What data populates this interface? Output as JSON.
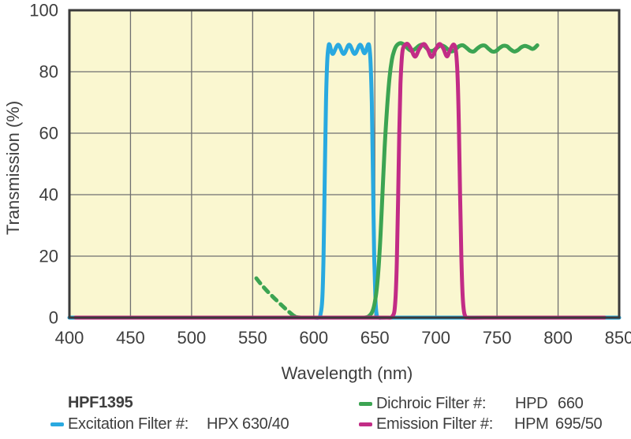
{
  "title_block": {
    "model": "HPF1395"
  },
  "legend": {
    "items": [
      {
        "name": "excitation",
        "label": "Excitation Filter #:",
        "part": "HPX",
        "value": "630/40",
        "color": "#29a9e0"
      },
      {
        "name": "dichroic",
        "label": "Dichroic Filter #:",
        "part": "HPD",
        "value": "660",
        "color": "#3ca452"
      },
      {
        "name": "emission",
        "label": "Emission Filter #:",
        "part": "HPM",
        "value": "695/50",
        "color": "#c22c86"
      }
    ]
  },
  "chart_data": {
    "type": "line",
    "title": "",
    "xlabel": "Wavelength (nm)",
    "ylabel": "Transmission (%)",
    "xlim": [
      400,
      850
    ],
    "ylim": [
      0,
      100
    ],
    "x_ticks": [
      400,
      450,
      500,
      550,
      600,
      650,
      700,
      750,
      800,
      850
    ],
    "y_ticks": [
      0,
      20,
      40,
      60,
      80,
      100
    ],
    "grid": true,
    "legend_position": "bottom",
    "plot_bg": "#faf7d0",
    "grid_color": "#6f6f6f",
    "frame_color": "#3a3a3a",
    "series": [
      {
        "name": "Excitation Filter HPX 630/40",
        "color": "#29a9e0",
        "style": "solid",
        "points": [
          [
            400,
            0
          ],
          [
            450,
            0
          ],
          [
            500,
            0
          ],
          [
            550,
            0
          ],
          [
            580,
            0
          ],
          [
            600,
            0
          ],
          [
            604,
            0
          ],
          [
            605.5,
            1
          ],
          [
            607,
            6
          ],
          [
            608,
            20
          ],
          [
            609,
            45
          ],
          [
            610,
            70
          ],
          [
            611,
            83
          ],
          [
            612,
            88
          ],
          [
            613,
            88.8
          ],
          [
            615.5,
            85.8
          ],
          [
            620,
            88.8
          ],
          [
            624.5,
            85.8
          ],
          [
            629,
            88.8
          ],
          [
            633.5,
            85.8
          ],
          [
            638,
            88.8
          ],
          [
            641.5,
            86
          ],
          [
            644.5,
            88.8
          ],
          [
            645.5,
            88
          ],
          [
            646.5,
            83
          ],
          [
            647.5,
            70
          ],
          [
            648.5,
            45
          ],
          [
            649.5,
            20
          ],
          [
            650.5,
            6
          ],
          [
            651.5,
            1
          ],
          [
            653,
            0
          ],
          [
            660,
            0
          ],
          [
            700,
            0
          ],
          [
            750,
            0
          ],
          [
            800,
            0
          ],
          [
            850,
            0
          ]
        ]
      },
      {
        "name": "Dichroic Filter HPD 660 (sub-edge, dashed)",
        "color": "#3ca452",
        "style": "dashed",
        "points": [
          [
            553,
            12.8
          ],
          [
            557,
            10.8
          ],
          [
            562,
            8.6
          ],
          [
            567,
            6.6
          ],
          [
            572,
            4.7
          ],
          [
            576,
            3.2
          ],
          [
            580,
            1.8
          ],
          [
            583,
            0.8
          ],
          [
            585.5,
            0.2
          ]
        ]
      },
      {
        "name": "Dichroic Filter HPD 660",
        "color": "#3ca452",
        "style": "solid",
        "points": [
          [
            585.5,
            0.2
          ],
          [
            590,
            0
          ],
          [
            610,
            0
          ],
          [
            630,
            0
          ],
          [
            640,
            0
          ],
          [
            644,
            0.2
          ],
          [
            646,
            0.8
          ],
          [
            648,
            2
          ],
          [
            650,
            5
          ],
          [
            652,
            11
          ],
          [
            654,
            22
          ],
          [
            656,
            38
          ],
          [
            658,
            55
          ],
          [
            660,
            68
          ],
          [
            662,
            78
          ],
          [
            664,
            84
          ],
          [
            666,
            87
          ],
          [
            668,
            88.6
          ],
          [
            671,
            89.3
          ],
          [
            674,
            88.8
          ],
          [
            677,
            87.6
          ],
          [
            680,
            86.8
          ],
          [
            683,
            87.4
          ],
          [
            686,
            88.4
          ],
          [
            689,
            88.8
          ],
          [
            692,
            87.8
          ],
          [
            695,
            86.8
          ],
          [
            698,
            86.9
          ],
          [
            701,
            87.8
          ],
          [
            704,
            88.6
          ],
          [
            707,
            88.2
          ],
          [
            710,
            87.2
          ],
          [
            713,
            86.6
          ],
          [
            716,
            87.3
          ],
          [
            719,
            88.3
          ],
          [
            722,
            88.6
          ],
          [
            725,
            87.8
          ],
          [
            728,
            86.8
          ],
          [
            731,
            86.6
          ],
          [
            734,
            87.6
          ],
          [
            737,
            88.4
          ],
          [
            740,
            88.5
          ],
          [
            743,
            87.5
          ],
          [
            746,
            86.6
          ],
          [
            749,
            86.7
          ],
          [
            752,
            87.7
          ],
          [
            755,
            88.4
          ],
          [
            758,
            88.3
          ],
          [
            761,
            87.3
          ],
          [
            764,
            86.6
          ],
          [
            767,
            87
          ],
          [
            770,
            88
          ],
          [
            773,
            88.4
          ],
          [
            776,
            88
          ],
          [
            779,
            87.4
          ],
          [
            781,
            87.8
          ],
          [
            783,
            88.6
          ]
        ]
      },
      {
        "name": "Emission Filter HPM 695/50",
        "color": "#c22c86",
        "style": "solid",
        "points": [
          [
            405,
            0
          ],
          [
            450,
            0
          ],
          [
            500,
            0
          ],
          [
            550,
            0
          ],
          [
            600,
            0
          ],
          [
            640,
            0
          ],
          [
            660,
            0
          ],
          [
            663,
            0
          ],
          [
            664.5,
            0.5
          ],
          [
            666,
            2
          ],
          [
            667,
            7
          ],
          [
            668,
            18
          ],
          [
            669,
            38
          ],
          [
            670,
            60
          ],
          [
            671,
            76
          ],
          [
            672,
            84
          ],
          [
            673,
            87.5
          ],
          [
            675,
            88.8
          ],
          [
            677,
            89
          ],
          [
            679.5,
            87.5
          ],
          [
            683,
            84.9
          ],
          [
            686.5,
            87.5
          ],
          [
            690,
            89
          ],
          [
            693,
            87.6
          ],
          [
            696.5,
            84.8
          ],
          [
            700,
            87.4
          ],
          [
            703,
            89
          ],
          [
            706,
            87.6
          ],
          [
            709,
            85
          ],
          [
            711.5,
            87
          ],
          [
            713.5,
            88.5
          ],
          [
            714.8,
            88.8
          ],
          [
            715.8,
            88
          ],
          [
            716.8,
            85
          ],
          [
            717.8,
            78
          ],
          [
            718.8,
            62
          ],
          [
            719.8,
            40
          ],
          [
            720.8,
            20
          ],
          [
            721.8,
            8
          ],
          [
            722.8,
            2.5
          ],
          [
            724,
            0.5
          ],
          [
            726,
            0
          ],
          [
            740,
            0
          ],
          [
            780,
            0
          ],
          [
            820,
            0
          ],
          [
            838,
            0
          ]
        ]
      }
    ]
  }
}
